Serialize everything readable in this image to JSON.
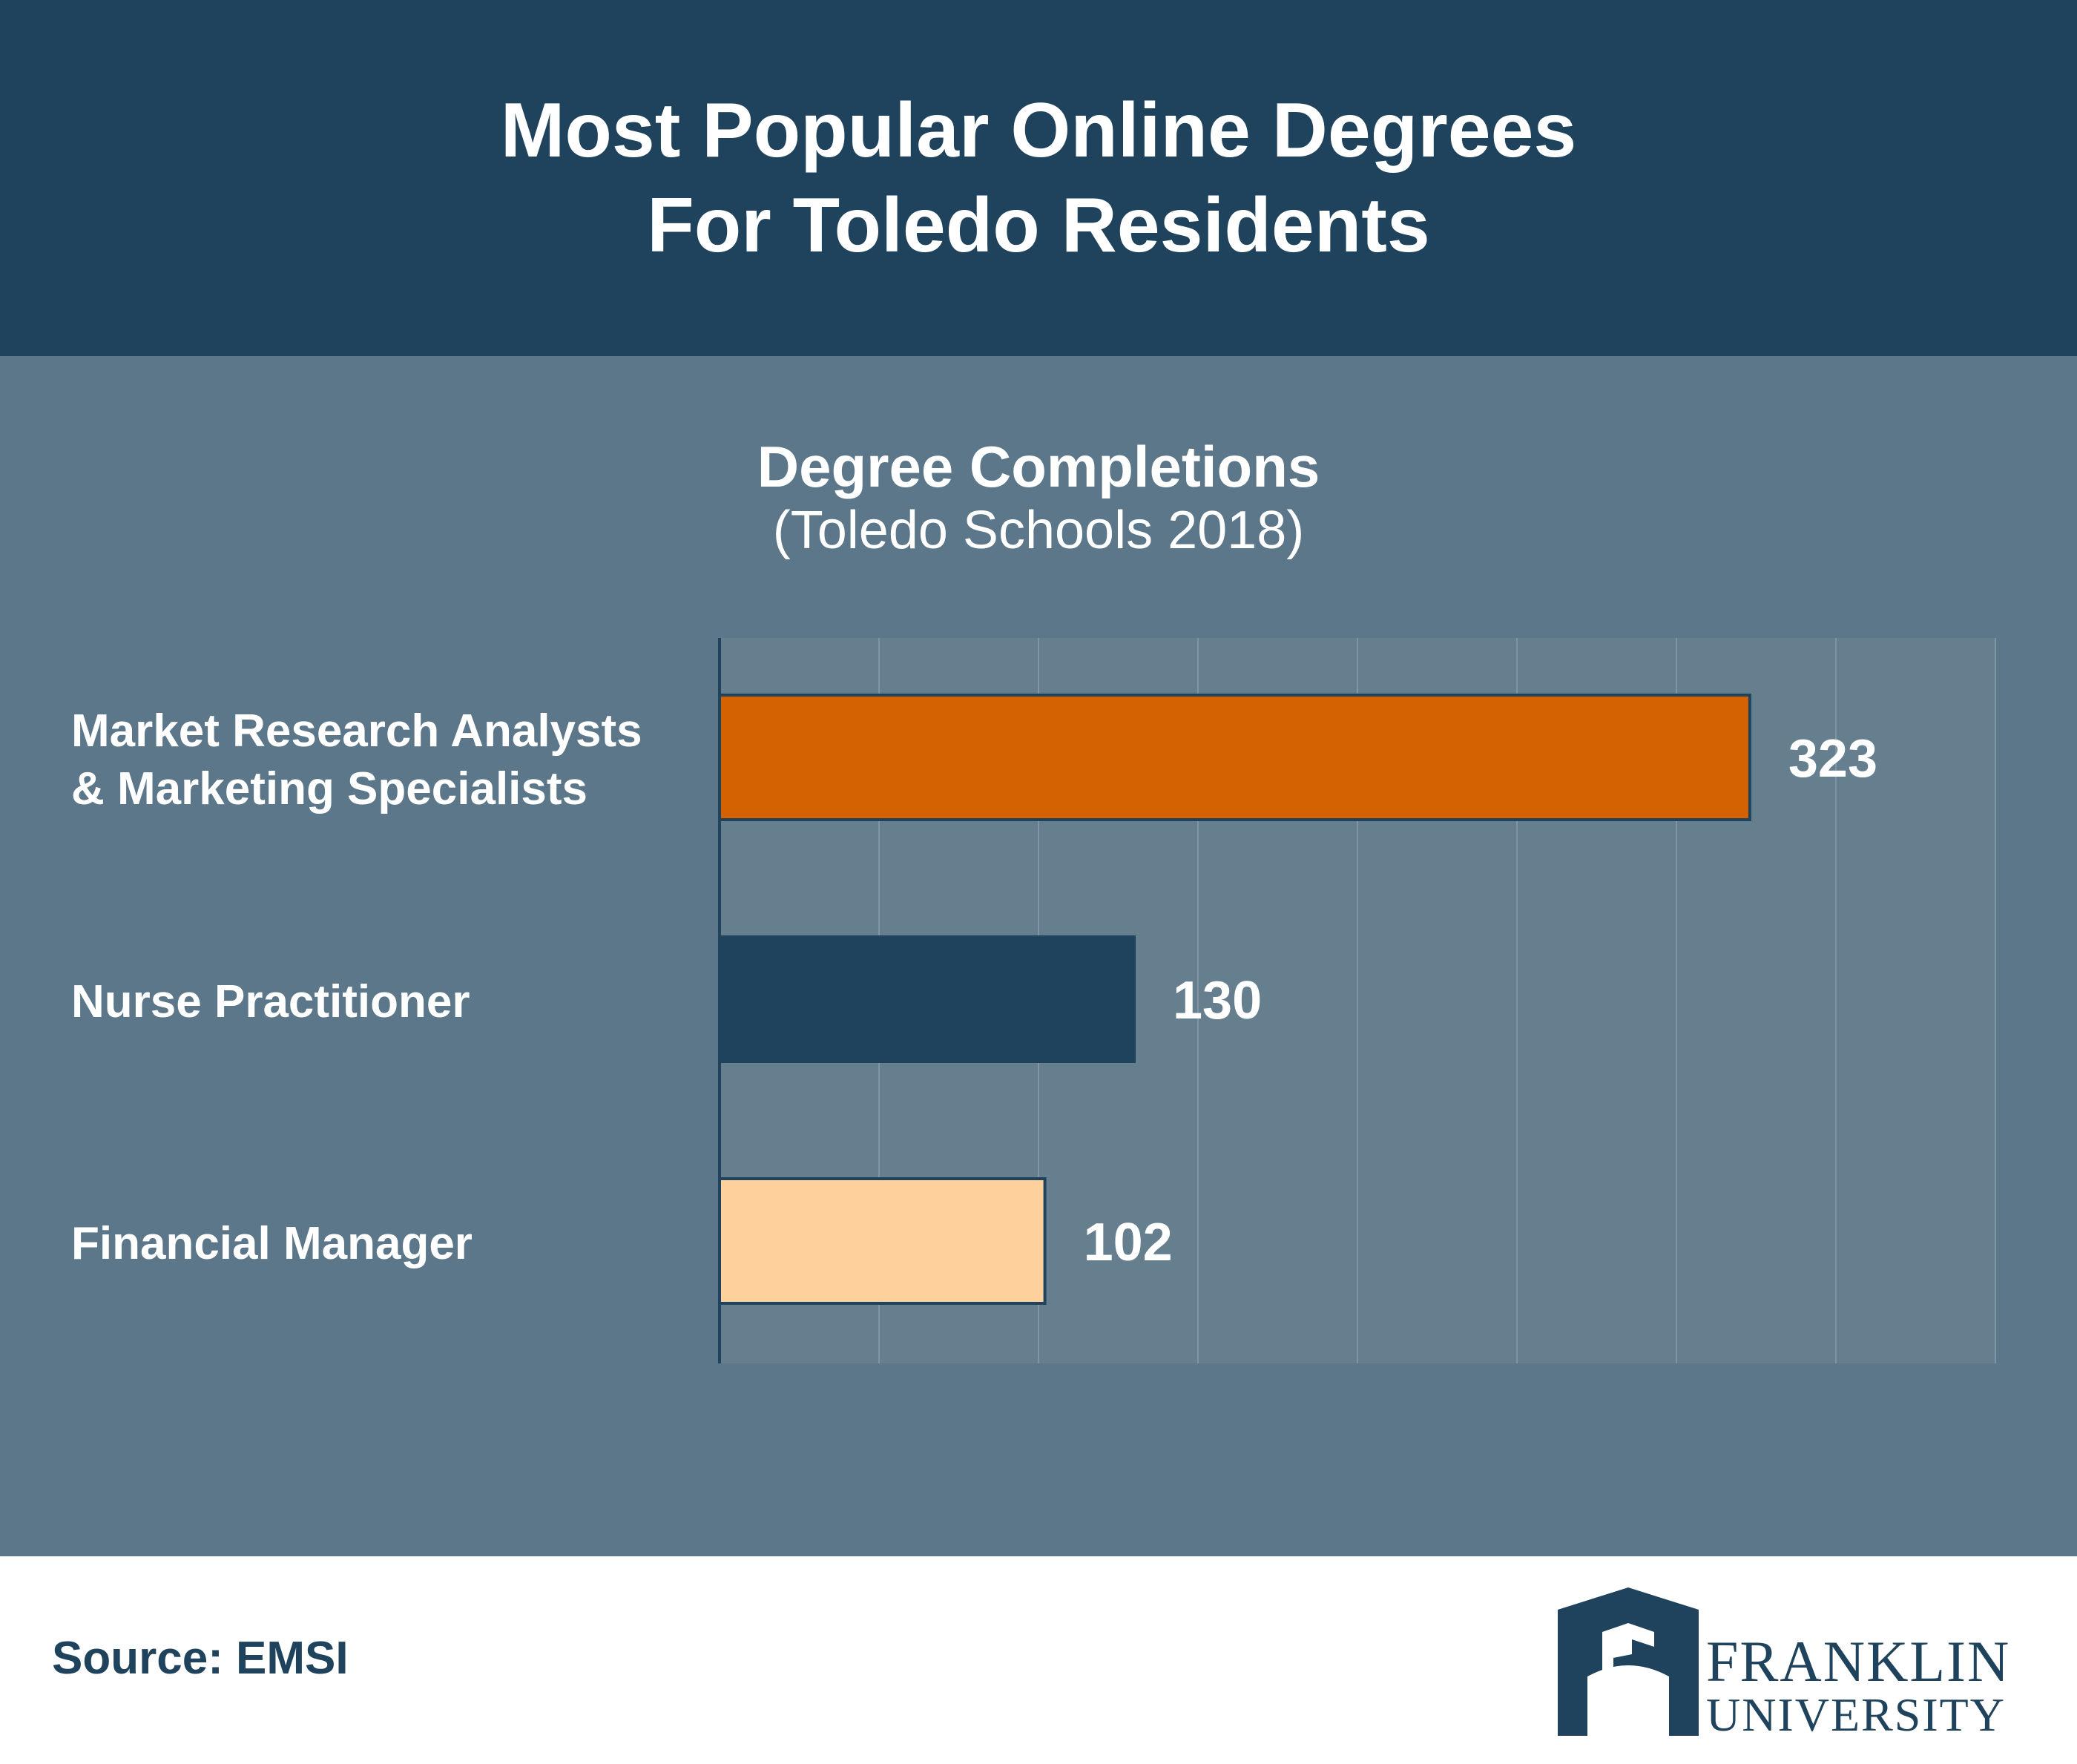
{
  "header": {
    "title_line1": "Most Popular Online Degrees",
    "title_line2": "For Toledo Residents"
  },
  "colors": {
    "header_bg": "#1f435c",
    "panel_bg": "#5b7789",
    "plot_bg": "#667f8f",
    "bar_border": "#1f435c"
  },
  "chart_data": {
    "type": "bar",
    "orientation": "horizontal",
    "title": "Degree Completions",
    "subtitle": "(Toledo Schools 2018)",
    "categories": [
      [
        "Market Research Analysts",
        "& Marketing Specialists"
      ],
      [
        "Nurse Practitioner"
      ],
      [
        "Financial Manager"
      ]
    ],
    "values": [
      323,
      130,
      102
    ],
    "value_labels": [
      "323",
      "130",
      "102"
    ],
    "bar_colors": [
      "#d56200",
      "#1f435c",
      "#fdd09c"
    ],
    "xlim": [
      0,
      400
    ],
    "grid": true,
    "grid_step": 50,
    "legend": "none"
  },
  "footer": {
    "source": "Source: EMSI",
    "logo_line1": "FRANKLIN",
    "logo_line2": "UNIVERSITY"
  }
}
